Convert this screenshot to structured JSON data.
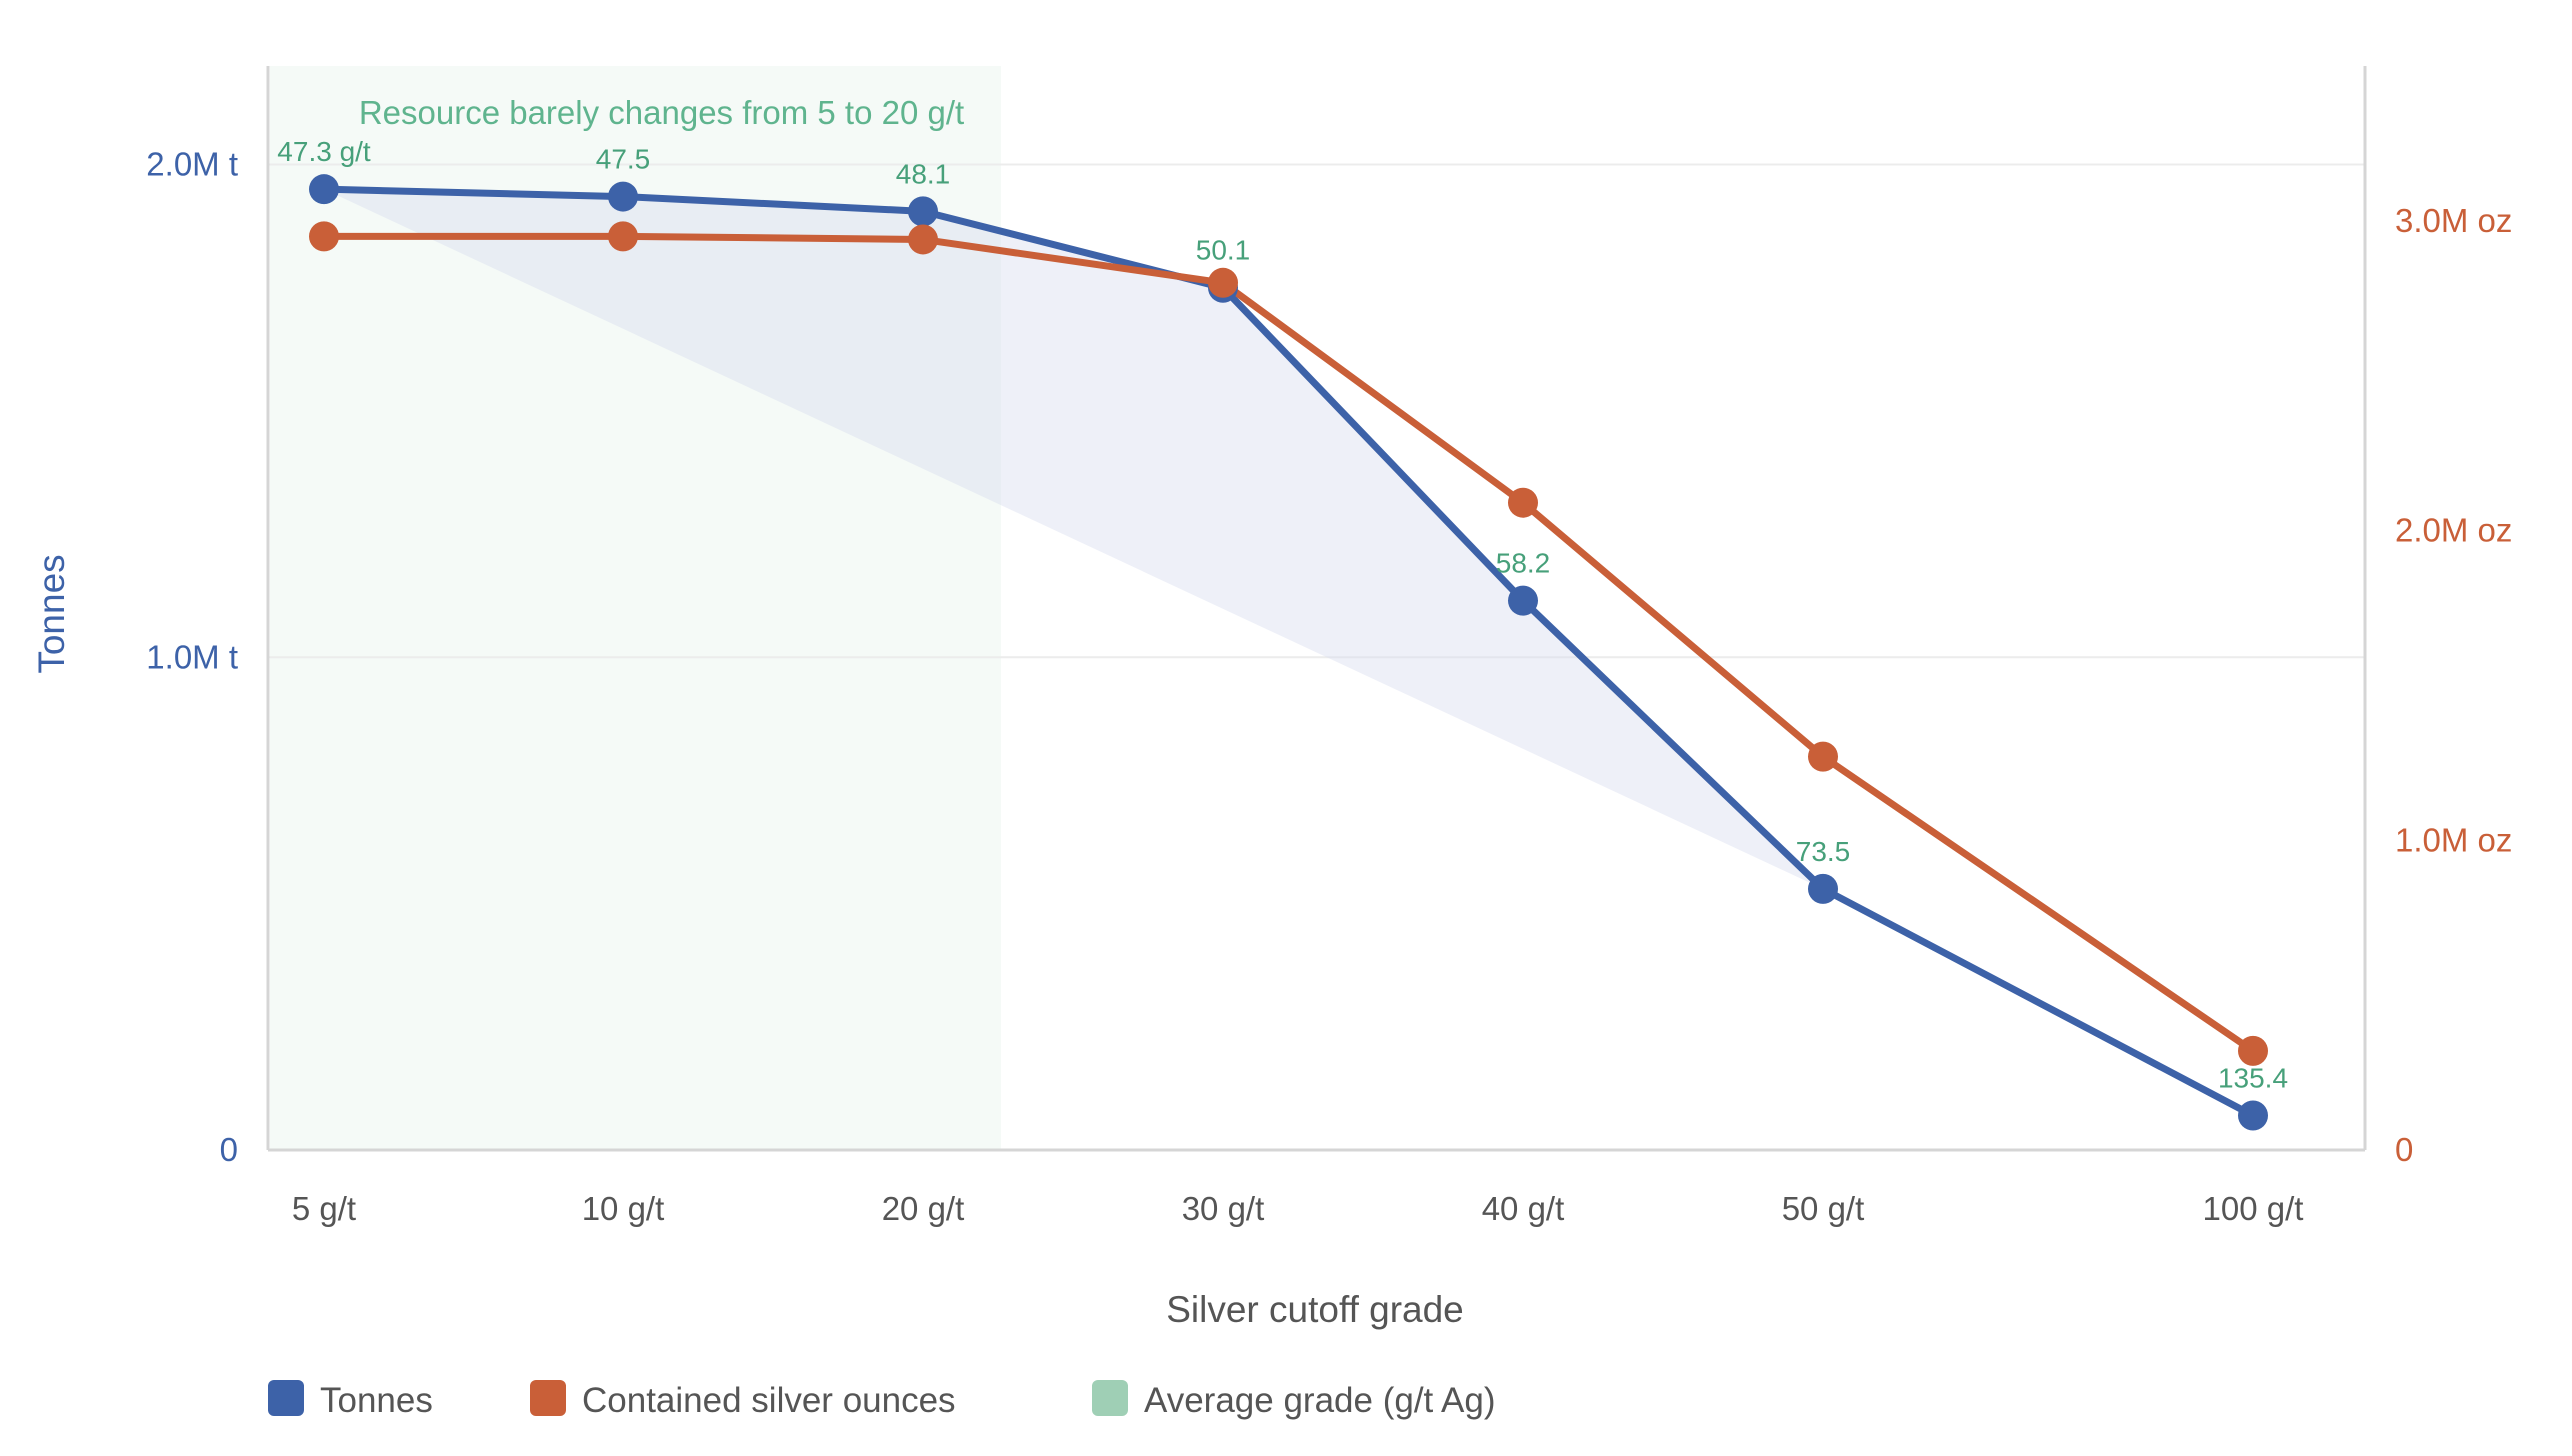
{
  "chart_data": {
    "type": "line",
    "title": "",
    "categories": [
      "5 g/t",
      "10 g/t",
      "20 g/t",
      "30 g/t",
      "40 g/t",
      "50 g/t",
      "100 g/t"
    ],
    "xlabel": "Silver cutoff grade",
    "y_left": {
      "label": "Tonnes",
      "range": [
        0,
        2200000
      ],
      "ticks": [
        0,
        1000000,
        2000000
      ],
      "tick_labels": [
        "0",
        "1.0M t",
        "2.0M t"
      ]
    },
    "y_right": {
      "label": "",
      "range": [
        0,
        3500000
      ],
      "ticks": [
        0,
        1000000,
        2000000,
        3000000
      ],
      "tick_labels": [
        "0",
        "1.0M oz",
        "2.0M oz",
        "3.0M oz"
      ]
    },
    "series": [
      {
        "name": "Tonnes",
        "axis": "left",
        "color": "#3d62a8",
        "values": [
          1950000,
          1935000,
          1905000,
          1750000,
          1115000,
          530000,
          70000
        ]
      },
      {
        "name": "Contained silver ounces",
        "axis": "right",
        "color": "#c95f38",
        "values": [
          2950000,
          2950000,
          2940000,
          2800000,
          2090000,
          1270000,
          320000
        ]
      },
      {
        "name": "Average grade (g/t Ag)",
        "type": "data-labels",
        "color": "#47a07a",
        "values": [
          47.3,
          47.5,
          48.1,
          50.1,
          58.2,
          73.5,
          135.4
        ],
        "labels": [
          "47.3 g/t",
          "47.5",
          "48.1",
          "50.1",
          "58.2",
          "73.5",
          "135.4"
        ]
      }
    ],
    "annotation": {
      "text": "Resource barely changes from 5 to 20 g/t",
      "x_range": [
        "5 g/t",
        "20 g/t"
      ],
      "color": "#5fb48e"
    },
    "legend": {
      "placement": "bottom-left",
      "items": [
        {
          "label": "Tonnes",
          "color": "#3d62a8"
        },
        {
          "label": "Contained silver ounces",
          "color": "#c95f38"
        },
        {
          "label": "Average grade (g/t Ag)",
          "color": "#9fcfb5"
        }
      ]
    },
    "grid": true
  }
}
